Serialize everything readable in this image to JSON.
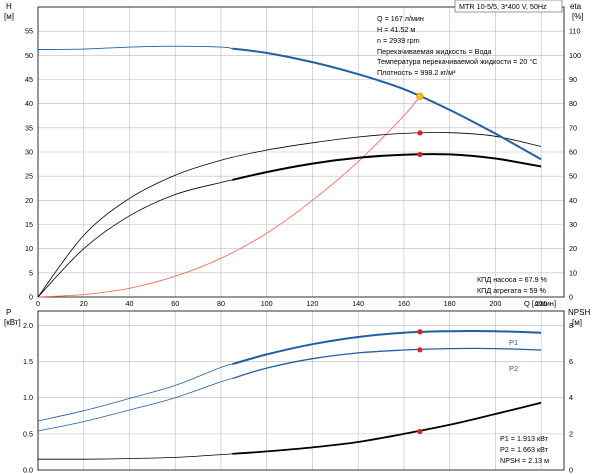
{
  "chart_data": [
    {
      "type": "line",
      "title_box": "MTR 10-5/5, 3*400 V, 50Hz",
      "y_left_label_top": "H",
      "y_left_label_unit": "[м]",
      "y_right_label_top": "eta",
      "y_right_label_unit": "[%]",
      "xlabel": "Q [л/мин]",
      "xlim": [
        0,
        230
      ],
      "ylim_left": [
        0,
        60
      ],
      "ylim_right": [
        0,
        120
      ],
      "x_ticks": [
        "0",
        "20",
        "40",
        "60",
        "80",
        "100",
        "120",
        "140",
        "160",
        "180",
        "200",
        "220"
      ],
      "y_left_ticks": [
        "0",
        "5",
        "10",
        "15",
        "20",
        "25",
        "30",
        "35",
        "40",
        "45",
        "50",
        "55"
      ],
      "y_right_ticks": [
        "0",
        "10",
        "20",
        "30",
        "40",
        "50",
        "60",
        "70",
        "80",
        "90",
        "100",
        "110"
      ],
      "info_lines": [
        "Q = 167 л/мин",
        "H = 41.52 м",
        "n = 2939 rpm",
        "Перекачиваемая жидкость = Вода",
        "Температура перекачиваемой жидкости = 20 °C",
        "Плотность = 998.2 кг/м³"
      ],
      "efficiency_lines": [
        "КПД насоса = 67.9 %",
        "КПД агрегата = 59 %"
      ],
      "colors": {
        "head": "#1f5fa6",
        "system": "#ff6a5a",
        "efficiency": "#000000",
        "duty_point": "#e01f1f",
        "operating_point": "#ffc400",
        "grid": "#bcbcbc"
      },
      "series": [
        {
          "key": "head",
          "axis": "left",
          "split_x": 85,
          "x": [
            0,
            20,
            40,
            60,
            80,
            100,
            120,
            140,
            160,
            180,
            200,
            220
          ],
          "y": [
            51.2,
            51.3,
            51.7,
            51.9,
            51.7,
            50.5,
            48.6,
            46.1,
            43.0,
            38.7,
            33.8,
            28.5
          ]
        },
        {
          "key": "system",
          "axis": "left",
          "x": [
            0,
            20,
            40,
            60,
            80,
            100,
            120,
            140,
            160,
            167
          ],
          "y": [
            0,
            0.5,
            1.8,
            4.3,
            8.0,
            13.2,
            20.0,
            28.0,
            37.5,
            41.52
          ]
        },
        {
          "key": "pump_efficiency",
          "axis": "right",
          "x": [
            0,
            20,
            40,
            60,
            80,
            100,
            120,
            140,
            160,
            180,
            200,
            220
          ],
          "y": [
            0,
            25.5,
            40.8,
            50.4,
            56.6,
            60.8,
            63.8,
            66.2,
            67.7,
            68.0,
            66.5,
            62.3
          ]
        },
        {
          "key": "unit_efficiency",
          "axis": "right",
          "split_x": 85,
          "x": [
            0,
            20,
            40,
            60,
            80,
            100,
            120,
            140,
            160,
            180,
            200,
            220
          ],
          "y": [
            0,
            20.0,
            33.6,
            42.4,
            47.4,
            51.7,
            55.2,
            57.6,
            58.9,
            59.0,
            57.3,
            54.0
          ]
        }
      ],
      "duty_points": [
        {
          "x": 167,
          "y": 41.52,
          "axis": "left",
          "color_key": "operating_point"
        },
        {
          "x": 167,
          "y": 67.9,
          "axis": "right",
          "color_key": "duty_point"
        },
        {
          "x": 167,
          "y": 59.0,
          "axis": "right",
          "color_key": "duty_point"
        }
      ]
    },
    {
      "type": "line",
      "y_left_label_top": "P",
      "y_left_label_unit": "[кВт]",
      "y_right_label_top": "NPSH",
      "y_right_label_unit": "[м]",
      "xlim": [
        0,
        230
      ],
      "ylim_left": [
        0,
        2.2
      ],
      "ylim_right": [
        0,
        8.8
      ],
      "y_left_ticks": [
        "0.0",
        "0.5",
        "1.0",
        "1.5",
        "2.0"
      ],
      "y_right_ticks": [
        "0",
        "2",
        "4",
        "6",
        "8"
      ],
      "info_lines": [
        "P1 = 1.913 кВт",
        "P2 = 1.663 кВт",
        "NPSH = 2.13 м"
      ],
      "colors": {
        "power": "#1f5fa6",
        "npsh": "#000000",
        "duty_point": "#e01f1f",
        "grid": "#bcbcbc"
      },
      "series": [
        {
          "key": "P1",
          "name": "P1",
          "axis": "left",
          "split_x": 85,
          "x": [
            0,
            20,
            40,
            60,
            80,
            100,
            120,
            140,
            160,
            180,
            200,
            220
          ],
          "y": [
            0.68,
            0.82,
            0.99,
            1.17,
            1.42,
            1.6,
            1.74,
            1.84,
            1.9,
            1.92,
            1.92,
            1.9
          ]
        },
        {
          "key": "P2",
          "name": "P2",
          "axis": "left",
          "split_x": 85,
          "x": [
            0,
            20,
            40,
            60,
            80,
            100,
            120,
            140,
            160,
            180,
            200,
            220
          ],
          "y": [
            0.54,
            0.67,
            0.83,
            1.0,
            1.22,
            1.41,
            1.54,
            1.62,
            1.66,
            1.68,
            1.68,
            1.66
          ]
        },
        {
          "key": "NPSH",
          "axis": "right",
          "split_x": 85,
          "x": [
            0,
            20,
            40,
            60,
            80,
            100,
            120,
            140,
            160,
            180,
            200,
            220
          ],
          "y": [
            0.6,
            0.6,
            0.63,
            0.7,
            0.85,
            1.03,
            1.25,
            1.55,
            2.0,
            2.5,
            3.1,
            3.72
          ]
        }
      ],
      "duty_points": [
        {
          "x": 167,
          "y": 1.913,
          "axis": "left"
        },
        {
          "x": 167,
          "y": 1.663,
          "axis": "left"
        },
        {
          "x": 167,
          "y": 2.13,
          "axis": "right"
        }
      ]
    }
  ]
}
